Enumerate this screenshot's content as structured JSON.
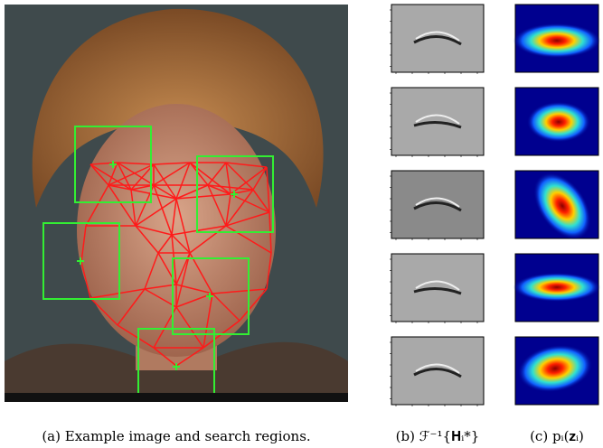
{
  "captions": {
    "a": "(a) Example image and search regions.",
    "b": "(b) ℱ⁻¹{𝐇ᵢ*}",
    "c": "(c) pᵢ(𝐳ᵢ)"
  }
}
